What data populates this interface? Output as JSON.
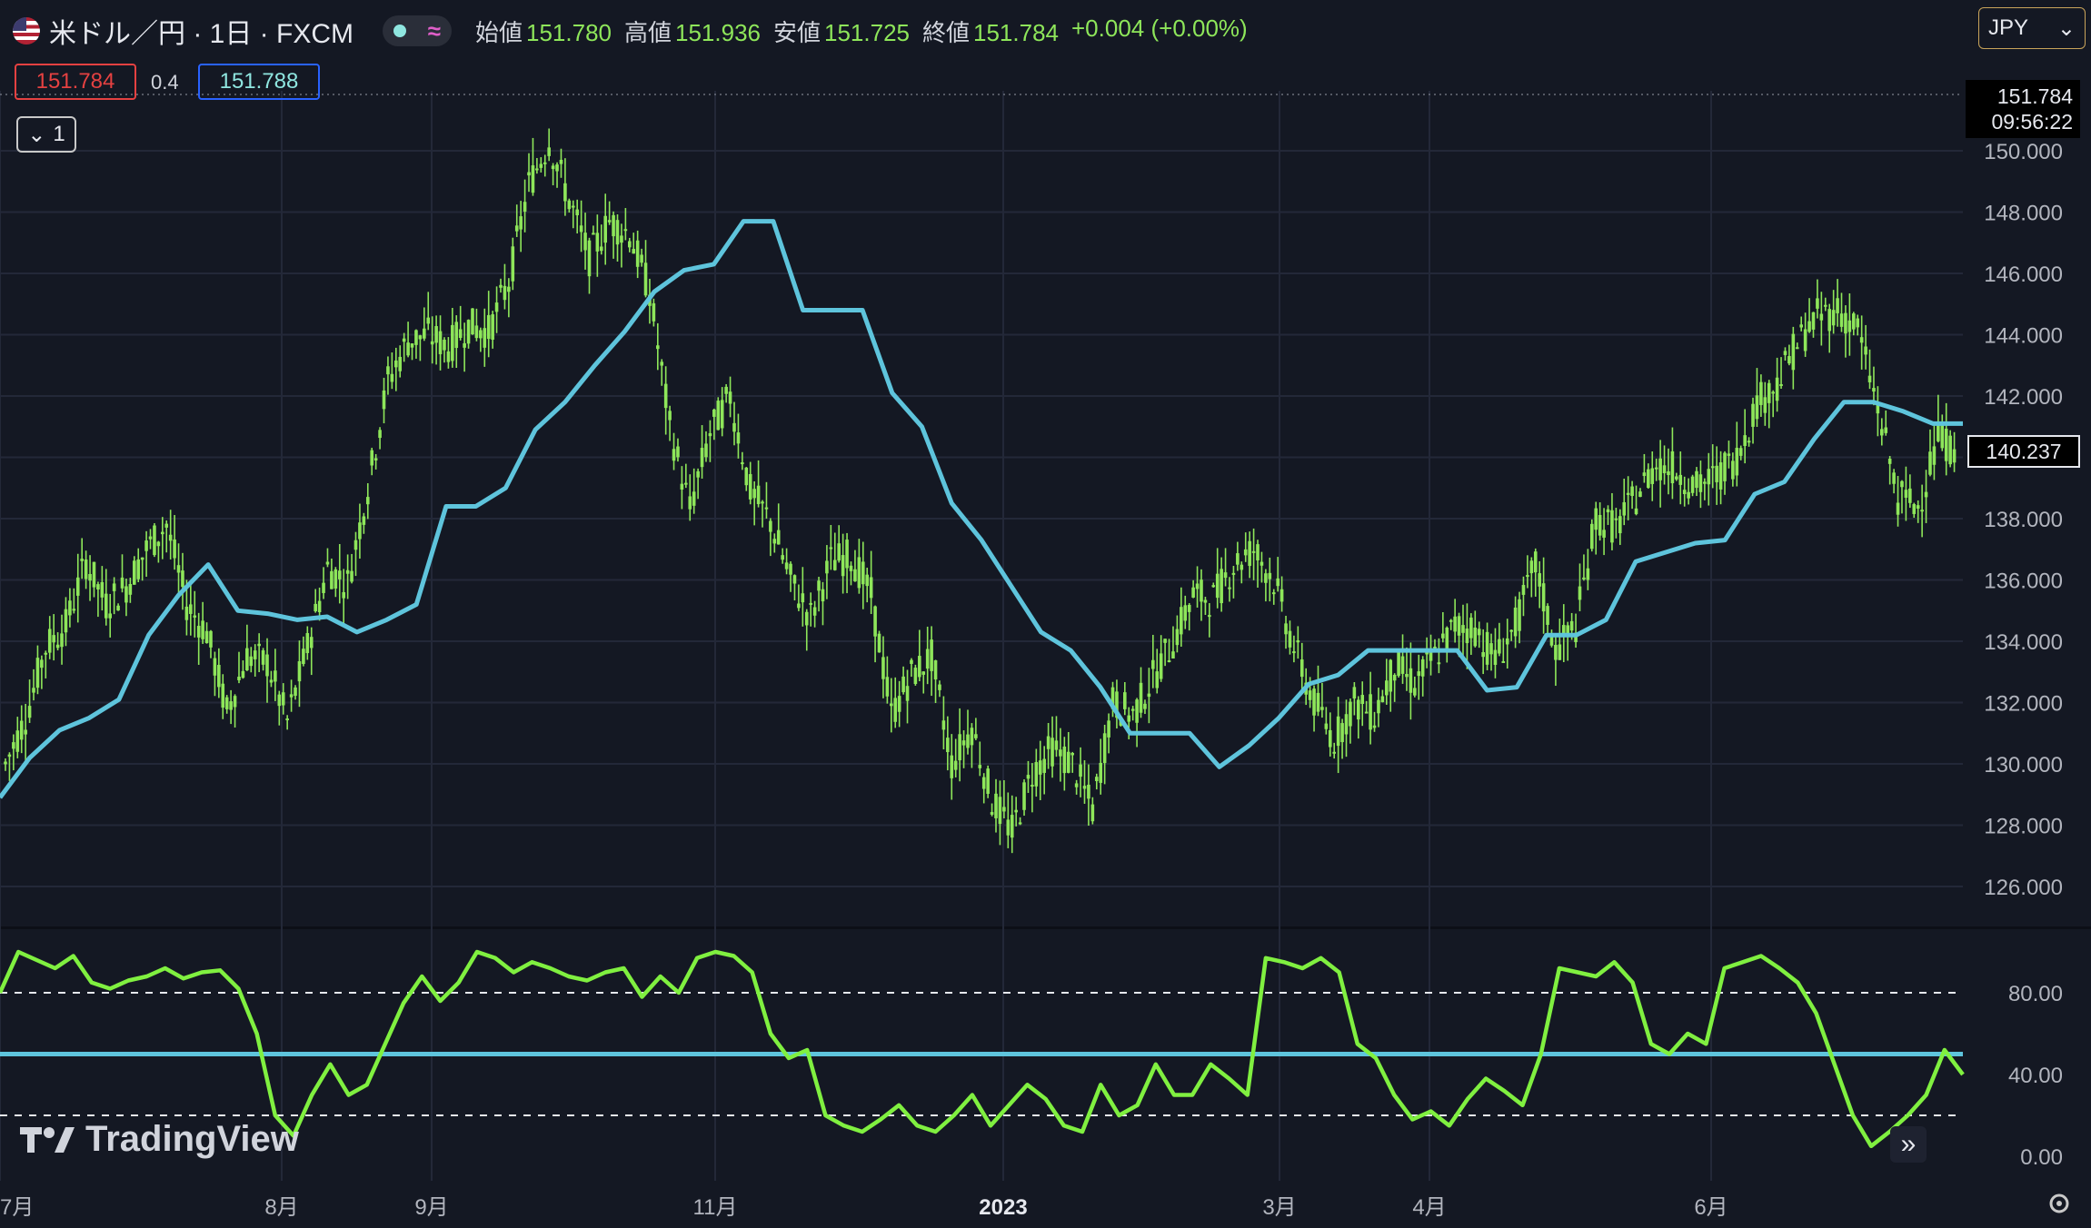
{
  "header": {
    "title": "米ドル／円 · 1日 · FXCM",
    "ohlc": [
      {
        "label": "始値",
        "value": "151.780"
      },
      {
        "label": "高値",
        "value": "151.936"
      },
      {
        "label": "安値",
        "value": "151.725"
      },
      {
        "label": "終値",
        "value": "151.784"
      }
    ],
    "change": "+0.004 (+0.00%)",
    "currency": "JPY"
  },
  "quote": {
    "bid": "151.784",
    "spread": "0.4",
    "ask": "151.788"
  },
  "collapse_label": "1",
  "price_label": {
    "price": "151.784",
    "time": "09:56:22"
  },
  "last_value_label": "140.237",
  "brand": "TradingView",
  "colors": {
    "background": "#141823",
    "price": "#8ee65a",
    "trail": "#5ec4dc",
    "oscillator": "#80f040",
    "grid": "#232838"
  },
  "chart_data": [
    {
      "type": "candlestick",
      "series": [
        {
          "name": "",
          "values": [
            130.0,
            131.5,
            133.8,
            134.5,
            136.6,
            135.2,
            135.8,
            137.0,
            137.8,
            135.2,
            134.3,
            131.7,
            133.5,
            133.3,
            131.4,
            133.8,
            136.4,
            135.9,
            139.0,
            142.5,
            143.8,
            144.0,
            143.6,
            144.3,
            144.1,
            145.7,
            148.9,
            150.3,
            148.4,
            146.5,
            147.7,
            147.3,
            145.4,
            141.0,
            138.3,
            140.8,
            142.0,
            138.9,
            137.9,
            136.0,
            134.8,
            136.6,
            136.8,
            135.5,
            131.6,
            132.9,
            133.5,
            130.0,
            131.2,
            128.8,
            127.8,
            129.7,
            130.5,
            130.0,
            128.5,
            132.0,
            131.6,
            132.8,
            134.0,
            135.5,
            135.4,
            136.5,
            137.0,
            136.0,
            133.8,
            132.0,
            130.8,
            132.0,
            131.6,
            133.2,
            132.6,
            133.5,
            134.5,
            134.4,
            133.4,
            134.5,
            136.5,
            133.7,
            134.5,
            138.0,
            137.7,
            138.7,
            139.8,
            139.6,
            139.0,
            139.4,
            140.0,
            141.8,
            142.4,
            143.7,
            144.6,
            144.8,
            144.2,
            141.6,
            138.7,
            138.4,
            140.6,
            140.2
          ]
        },
        {
          "name": "",
          "values": [
            128.9,
            130.2,
            131.1,
            131.5,
            132.1,
            134.2,
            135.5,
            136.5,
            135.0,
            134.9,
            134.7,
            134.8,
            134.3,
            134.7,
            135.2,
            138.4,
            138.4,
            139.0,
            140.9,
            141.8,
            143.0,
            144.1,
            145.4,
            146.1,
            146.3,
            147.7,
            147.7,
            144.8,
            144.8,
            144.8,
            142.1,
            141.0,
            138.5,
            137.3,
            135.8,
            134.3,
            133.7,
            132.5,
            131.0,
            131.0,
            131.0,
            129.9,
            130.6,
            131.5,
            132.6,
            132.9,
            133.7,
            133.7,
            133.7,
            133.7,
            132.4,
            132.5,
            134.2,
            134.2,
            134.7,
            136.6,
            136.9,
            137.2,
            137.3,
            138.8,
            139.2,
            140.6,
            141.8,
            141.8,
            141.5,
            141.1,
            141.1
          ]
        }
      ]
    },
    {
      "type": "line",
      "y_ticks": [
        "80.00",
        "40.00",
        "0.00"
      ],
      "series": [
        {
          "name": "",
          "values": [
            80,
            100,
            96,
            92,
            98,
            85,
            82,
            86,
            88,
            92,
            87,
            90,
            91,
            82,
            60,
            20,
            10,
            30,
            45,
            30,
            35,
            55,
            75,
            88,
            76,
            85,
            100,
            97,
            90,
            95,
            92,
            88,
            86,
            90,
            92,
            78,
            88,
            80,
            97,
            100,
            98,
            90,
            60,
            48,
            52,
            20,
            15,
            12,
            18,
            25,
            15,
            12,
            20,
            30,
            15,
            25,
            35,
            28,
            15,
            12,
            35,
            20,
            25,
            45,
            30,
            30,
            45,
            38,
            30,
            97,
            95,
            92,
            97,
            90,
            55,
            48,
            30,
            18,
            22,
            15,
            28,
            38,
            32,
            25,
            50,
            92,
            90,
            88,
            95,
            85,
            55,
            50,
            60,
            55,
            92,
            95,
            98,
            92,
            85,
            70,
            45,
            20,
            5,
            12,
            20,
            30,
            52,
            40
          ]
        },
        {
          "name": "",
          "values": [
            50,
            50
          ]
        }
      ]
    }
  ],
  "x_ticks": [
    "7月",
    "8月",
    "9月",
    "11月",
    "2023",
    "3月",
    "4月",
    "6月"
  ],
  "y_ticks_main": [
    "150.000",
    "148.000",
    "146.000",
    "144.000",
    "142.000",
    "140.000",
    "138.000",
    "136.000",
    "134.000",
    "132.000",
    "130.000",
    "128.000",
    "126.000"
  ]
}
